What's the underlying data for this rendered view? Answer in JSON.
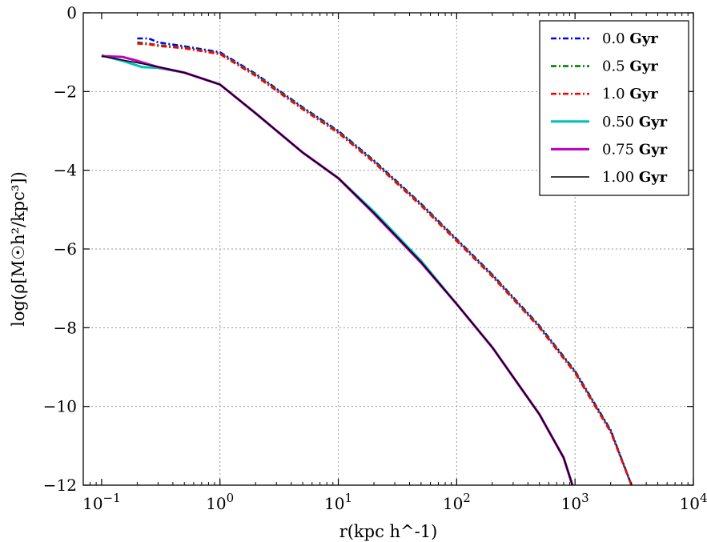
{
  "chart_data": {
    "type": "line",
    "title": "",
    "xlabel": "r(kpc h^-1)",
    "ylabel": "log(ρ[M☉h²/kpc³])",
    "xscale": "log",
    "xlim": [
      0.07,
      10000
    ],
    "ylim": [
      -12,
      0
    ],
    "grid": true,
    "legend_position": "top-right",
    "x_ticks": [
      {
        "value": 0.1,
        "base": "10",
        "exp": "−1"
      },
      {
        "value": 1,
        "base": "10",
        "exp": "0"
      },
      {
        "value": 10,
        "base": "10",
        "exp": "1"
      },
      {
        "value": 100,
        "base": "10",
        "exp": "2"
      },
      {
        "value": 1000,
        "base": "10",
        "exp": "3"
      },
      {
        "value": 10000,
        "base": "10",
        "exp": "4"
      }
    ],
    "y_ticks": [
      {
        "value": 0,
        "label": "0"
      },
      {
        "value": -2,
        "label": "−2"
      },
      {
        "value": -4,
        "label": "−4"
      },
      {
        "value": -6,
        "label": "−6"
      },
      {
        "value": -8,
        "label": "−8"
      },
      {
        "value": -10,
        "label": "−10"
      },
      {
        "value": -12,
        "label": "−12"
      }
    ],
    "series": [
      {
        "name_num": "0.0",
        "name_unit": "Gyr",
        "color": "#0000ff",
        "style": "dashdot",
        "x": [
          0.2,
          0.25,
          0.3,
          0.5,
          1,
          2,
          5,
          10,
          20,
          50,
          100,
          200,
          500,
          1000,
          2000,
          3000
        ],
        "y": [
          -0.65,
          -0.65,
          -0.75,
          -0.85,
          -1.0,
          -1.55,
          -2.4,
          -3.0,
          -3.75,
          -4.85,
          -5.75,
          -6.65,
          -7.95,
          -9.1,
          -10.6,
          -12.0
        ]
      },
      {
        "name_num": "0.5",
        "name_unit": "Gyr",
        "color": "#008000",
        "style": "dashdot",
        "x": [
          0.2,
          0.25,
          0.3,
          0.5,
          1,
          2,
          5,
          10,
          20,
          50,
          100,
          200,
          500,
          1000,
          2000,
          3000
        ],
        "y": [
          -0.75,
          -0.78,
          -0.82,
          -0.88,
          -1.03,
          -1.57,
          -2.42,
          -3.02,
          -3.77,
          -4.87,
          -5.77,
          -6.67,
          -7.97,
          -9.12,
          -10.62,
          -12.0
        ]
      },
      {
        "name_num": "1.0",
        "name_unit": "Gyr",
        "color": "#ff0000",
        "style": "dashdot",
        "x": [
          0.2,
          0.25,
          0.3,
          0.5,
          1,
          2,
          5,
          10,
          20,
          50,
          100,
          200,
          500,
          1000,
          2000,
          3000
        ],
        "y": [
          -0.78,
          -0.8,
          -0.84,
          -0.9,
          -1.05,
          -1.6,
          -2.45,
          -3.05,
          -3.8,
          -4.9,
          -5.8,
          -6.7,
          -8.0,
          -9.15,
          -10.65,
          -12.0
        ]
      },
      {
        "name_num": "0.50",
        "name_unit": "Gyr",
        "color": "#00bfbf",
        "style": "solid",
        "x": [
          0.1,
          0.15,
          0.22,
          0.3,
          0.5,
          1,
          2,
          5,
          10,
          20,
          50,
          100,
          200,
          500,
          800,
          950
        ],
        "y": [
          -1.08,
          -1.22,
          -1.38,
          -1.4,
          -1.52,
          -1.82,
          -2.55,
          -3.55,
          -4.2,
          -5.05,
          -6.3,
          -7.4,
          -8.5,
          -10.2,
          -11.3,
          -12.0
        ]
      },
      {
        "name_num": "0.75",
        "name_unit": "Gyr",
        "color": "#bf00bf",
        "style": "solid",
        "x": [
          0.1,
          0.15,
          0.2,
          0.3,
          0.5,
          1,
          2,
          5,
          10,
          20,
          50,
          100,
          200,
          500,
          800,
          950
        ],
        "y": [
          -1.1,
          -1.12,
          -1.22,
          -1.38,
          -1.52,
          -1.82,
          -2.55,
          -3.55,
          -4.2,
          -5.1,
          -6.35,
          -7.4,
          -8.5,
          -10.2,
          -11.3,
          -12.0
        ]
      },
      {
        "name_num": "1.00",
        "name_unit": "Gyr",
        "color": "#000000",
        "style": "thin",
        "x": [
          0.1,
          0.15,
          0.2,
          0.3,
          0.5,
          1,
          2,
          5,
          10,
          20,
          50,
          100,
          200,
          500,
          800,
          950
        ],
        "y": [
          -1.1,
          -1.2,
          -1.27,
          -1.37,
          -1.52,
          -1.82,
          -2.55,
          -3.55,
          -4.2,
          -5.08,
          -6.33,
          -7.4,
          -8.5,
          -10.2,
          -11.3,
          -12.0
        ]
      }
    ]
  }
}
